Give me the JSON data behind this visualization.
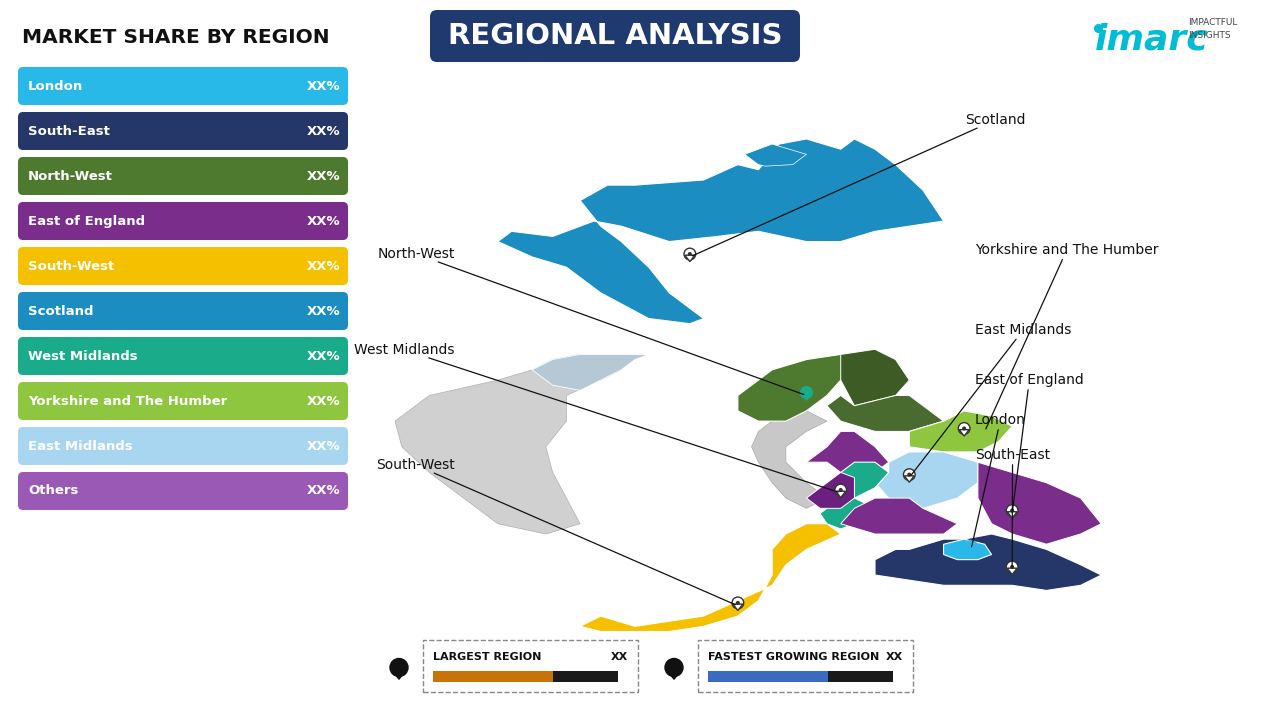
{
  "title": "REGIONAL ANALYSIS",
  "left_title": "MARKET SHARE BY REGION",
  "bg_color": "#ffffff",
  "legend_items": [
    {
      "label": "London",
      "color": "#29b9e8"
    },
    {
      "label": "South-East",
      "color": "#253668"
    },
    {
      "label": "North-West",
      "color": "#4e7a2f"
    },
    {
      "label": "East of England",
      "color": "#7b2d8b"
    },
    {
      "label": "South-West",
      "color": "#f5c000"
    },
    {
      "label": "Scotland",
      "color": "#1b8dc0"
    },
    {
      "label": "West Midlands",
      "color": "#1aab8a"
    },
    {
      "label": "Yorkshire and The Humber",
      "color": "#8ec63f"
    },
    {
      "label": "East Midlands",
      "color": "#a8d5f0"
    },
    {
      "label": "Others",
      "color": "#9b59b6"
    }
  ],
  "value_label": "XX%",
  "bottom_left_label": "LARGEST REGION",
  "bottom_left_value": "XX",
  "bottom_left_color1": "#c8720a",
  "bottom_left_color2": "#1a1a1a",
  "bottom_right_label": "FASTEST GROWING REGION",
  "bottom_right_value": "XX",
  "bottom_right_color1": "#3a6bbf",
  "bottom_right_color2": "#1a1a1a",
  "title_box_color": "#1e3a6e",
  "imarc_cyan": "#00bcd4",
  "map_bg": "#ffffff",
  "ireland_color": "#d8d8d8",
  "n_ireland_color": "#b0bec5"
}
